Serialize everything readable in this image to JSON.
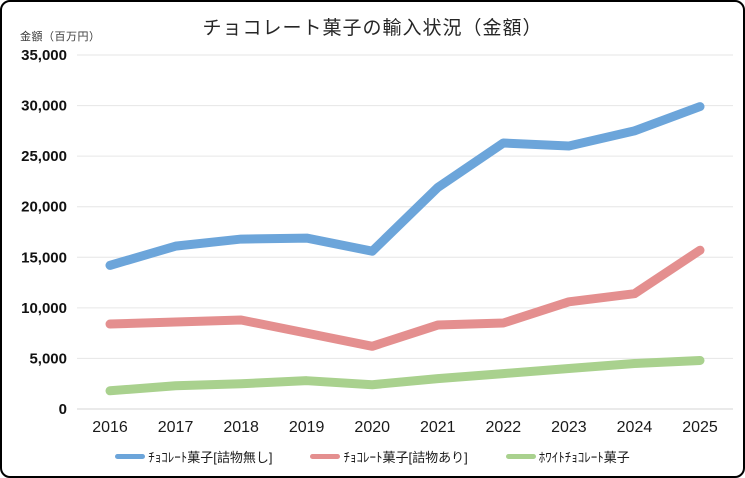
{
  "chart": {
    "title": "チョコレート菓子の輸入状況（金額）",
    "y_axis_unit": "金額（百万円）"
  },
  "chart_data": {
    "type": "line",
    "title": "チョコレート菓子の輸入状況（金額）",
    "ylabel": "金額（百万円）",
    "xlabel": "",
    "categories": [
      "2016",
      "2017",
      "2018",
      "2019",
      "2020",
      "2021",
      "2022",
      "2023",
      "2024",
      "2025"
    ],
    "series": [
      {
        "name": "ﾁｮｺﾚｰﾄ菓子[詰物無し]",
        "color": "#6CA5DA",
        "values": [
          14200,
          16100,
          16800,
          16900,
          15600,
          21900,
          26300,
          26000,
          27500,
          29900
        ]
      },
      {
        "name": "ﾁｮｺﾚｰﾄ菓子[詰物あり]",
        "color": "#E48F8F",
        "values": [
          8400,
          8600,
          8800,
          7500,
          6200,
          8300,
          8500,
          10600,
          11400,
          15700
        ]
      },
      {
        "name": "ﾎﾜｲﾄﾁｮｺﾚｰﾄ菓子",
        "color": "#A9D18E",
        "values": [
          1800,
          2300,
          2500,
          2800,
          2400,
          3000,
          3500,
          4000,
          4500,
          4800
        ]
      }
    ],
    "ylim": [
      0,
      35000
    ],
    "ytick_step": 5000,
    "ytick_labels": [
      "0",
      "5,000",
      "10,000",
      "15,000",
      "20,000",
      "25,000",
      "30,000",
      "35,000"
    ],
    "grid": true,
    "legend_position": "bottom"
  },
  "colors": {
    "gridline": "#E6E6E6",
    "zero_line": "#D6D6D6",
    "background": "#FFFFFF",
    "tick_text": "#111111"
  }
}
